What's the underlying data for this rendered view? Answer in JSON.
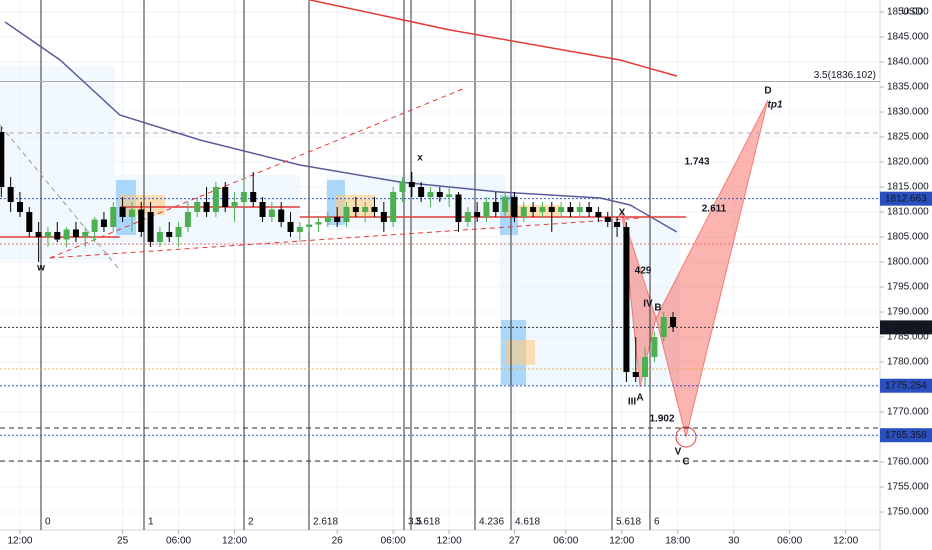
{
  "chart_data": {
    "type": "candlestick",
    "currency": "USD",
    "ylim": [
      1746.4,
      1852.4
    ],
    "yticks": [
      {
        "value": 1750,
        "label": "1750.000"
      },
      {
        "value": 1755,
        "label": "1755.000"
      },
      {
        "value": 1760,
        "label": "1760.000"
      },
      {
        "value": 1765,
        "label": "1765.000"
      },
      {
        "value": 1770,
        "label": "1770.000"
      },
      {
        "value": 1775,
        "label": "1775.000"
      },
      {
        "value": 1780,
        "label": "1780.000"
      },
      {
        "value": 1785,
        "label": "1785.000"
      },
      {
        "value": 1790,
        "label": "1790.000"
      },
      {
        "value": 1795,
        "label": "1795.000"
      },
      {
        "value": 1800,
        "label": "1800.000"
      },
      {
        "value": 1805,
        "label": "1805.000"
      },
      {
        "value": 1810,
        "label": "1810.000"
      },
      {
        "value": 1815,
        "label": "1815.000"
      },
      {
        "value": 1820,
        "label": "1820.000"
      },
      {
        "value": 1825,
        "label": "1825.000"
      },
      {
        "value": 1830,
        "label": "1830.000"
      },
      {
        "value": 1835,
        "label": "1835.000"
      },
      {
        "value": 1840,
        "label": "1840.000"
      },
      {
        "value": 1845,
        "label": "1845.000"
      },
      {
        "value": 1850,
        "label": "1850.000"
      }
    ],
    "xlim": [
      -2.14,
      92.18
    ],
    "xticks": [
      {
        "value": 0,
        "label": "12:00"
      },
      {
        "value": 11,
        "label": "25"
      },
      {
        "value": 17,
        "label": "06:00"
      },
      {
        "value": 23,
        "label": "12:00"
      },
      {
        "value": 34,
        "label": "26"
      },
      {
        "value": 40,
        "label": "06:00"
      },
      {
        "value": 46,
        "label": "12:00"
      },
      {
        "value": 53,
        "label": "27"
      },
      {
        "value": 58.5,
        "label": "06:00"
      },
      {
        "value": 64.5,
        "label": "12:00"
      },
      {
        "value": 70.5,
        "label": "18:00"
      },
      {
        "value": 76.5,
        "label": "30"
      },
      {
        "value": 82.5,
        "label": "06:00"
      },
      {
        "value": 88.5,
        "label": "12:00"
      }
    ],
    "grid": true,
    "up_color": "#4caf50",
    "down_color": "#000000",
    "x": [
      -2,
      -1,
      0,
      1,
      2,
      3,
      4,
      5,
      6,
      7,
      8,
      9,
      10,
      11,
      12,
      13,
      14,
      15,
      16,
      17,
      18,
      19,
      20,
      21,
      22,
      23,
      24,
      25,
      26,
      27,
      28,
      29,
      30,
      31,
      32,
      33,
      34,
      35,
      36,
      37,
      38,
      39,
      40,
      41,
      42,
      43,
      44,
      45,
      46,
      47,
      48,
      49,
      50,
      51,
      52,
      53,
      54,
      55,
      56,
      57,
      58,
      59,
      60,
      61,
      62,
      63,
      64,
      65,
      66,
      67,
      68,
      69,
      70
    ],
    "open": [
      1826,
      1815,
      1812,
      1810,
      1806,
      1805,
      1806,
      1804.5,
      1806.5,
      1805,
      1806,
      1808.5,
      1807,
      1811,
      1809,
      1810.5,
      1810,
      1804,
      1806,
      1805,
      1807,
      1810,
      1812,
      1810,
      1815,
      1811,
      1812,
      1814,
      1812,
      1809,
      1810.5,
      1808,
      1806,
      1807,
      1807.5,
      1808,
      1809,
      1808,
      1811,
      1810,
      1811,
      1810,
      1808,
      1814,
      1816,
      1815,
      1813,
      1814,
      1813,
      1813.5,
      1808,
      1810,
      1809,
      1812,
      1810,
      1813,
      1809,
      1811,
      1810,
      1811,
      1810,
      1811,
      1810,
      1811,
      1810,
      1809,
      1808,
      1807,
      1778,
      1777,
      1781,
      1785,
      1789
    ],
    "high": [
      1827,
      1817,
      1814,
      1811,
      1808,
      1807,
      1808,
      1807,
      1808,
      1807,
      1809,
      1810,
      1812,
      1813,
      1812,
      1812,
      1812,
      1807,
      1808,
      1808,
      1812,
      1813,
      1815,
      1816,
      1816,
      1814,
      1817,
      1818,
      1813,
      1812,
      1812,
      1810,
      1808,
      1809,
      1809,
      1810,
      1811,
      1812,
      1813,
      1812,
      1813,
      1812,
      1815,
      1817,
      1818,
      1816,
      1815,
      1815,
      1815,
      1814,
      1811,
      1812,
      1813,
      1814,
      1814,
      1814,
      1812,
      1812,
      1812,
      1812,
      1812,
      1812,
      1812,
      1812,
      1811,
      1810,
      1809,
      1808,
      1785,
      1783,
      1786,
      1790,
      1790
    ],
    "low": [
      1813,
      1810,
      1809,
      1805,
      1800,
      1803,
      1804,
      1803,
      1804,
      1803,
      1804,
      1806,
      1806,
      1808,
      1806,
      1805,
      1803,
      1803,
      1804,
      1803,
      1806,
      1809,
      1809,
      1809,
      1810,
      1808,
      1811,
      1811,
      1808,
      1808,
      1807,
      1805,
      1804,
      1806,
      1806,
      1807,
      1807,
      1807,
      1809,
      1808,
      1809,
      1806,
      1807,
      1812,
      1813,
      1812,
      1811,
      1812,
      1811,
      1806,
      1807,
      1808,
      1808,
      1809,
      1809,
      1808,
      1808,
      1809,
      1809,
      1806,
      1809,
      1809,
      1809,
      1809,
      1808,
      1807,
      1805,
      1776,
      1776,
      1775,
      1780,
      1784,
      1786
    ],
    "close": [
      1815,
      1812,
      1810,
      1806,
      1805,
      1806,
      1804.5,
      1806.5,
      1805,
      1806,
      1808.5,
      1807,
      1811,
      1809,
      1810.5,
      1806,
      1804,
      1806,
      1805,
      1807,
      1810,
      1812,
      1810,
      1815,
      1811,
      1812,
      1814,
      1812,
      1809,
      1810.5,
      1808,
      1806,
      1807,
      1807.5,
      1808,
      1809,
      1808,
      1811,
      1810,
      1811,
      1810,
      1808,
      1814,
      1816,
      1815,
      1813,
      1814,
      1813,
      1813.5,
      1808,
      1810,
      1809,
      1812,
      1810,
      1813,
      1809,
      1811,
      1810,
      1811,
      1810,
      1811,
      1810,
      1811,
      1810,
      1809,
      1808,
      1807,
      1778,
      1777,
      1781,
      1785,
      1789,
      1787
    ],
    "overlays": [
      {
        "color": "#5b5b9b",
        "style": "solid",
        "x": [
          -1.6,
          4.3,
          10.7,
          19.3,
          30,
          40.7,
          51.4,
          62.2,
          65.4,
          70.4
        ],
        "values": [
          1848,
          1840.4,
          1829.4,
          1824.4,
          1819.4,
          1816,
          1814,
          1812.8,
          1811.4,
          1806
        ]
      },
      {
        "color": "#e53935",
        "style": "solid",
        "x": [
          31.1,
          46.1,
          64.3,
          70.4
        ],
        "values": [
          1852.4,
          1846.4,
          1840.4,
          1837.2
        ]
      },
      {
        "color": "#e53935",
        "style": "solid",
        "x": [
          -2.14,
          10.7
        ],
        "values": [
          1805,
          1805
        ]
      },
      {
        "color": "#e53935",
        "style": "solid",
        "x": [
          10.7,
          30
        ],
        "values": [
          1811,
          1811
        ]
      },
      {
        "color": "#e53935",
        "style": "solid",
        "x": [
          30,
          71.4
        ],
        "values": [
          1809,
          1809
        ]
      },
      {
        "color": "#e53935",
        "style": "dashed",
        "x": [
          3.2,
          47.7
        ],
        "values": [
          1800.8,
          1834.8
        ]
      },
      {
        "color": "#e53935",
        "style": "dashed",
        "x": [
          3.2,
          66.5
        ],
        "values": [
          1800.8,
          1808.8
        ]
      },
      {
        "color": "#999999",
        "style": "dashed",
        "x": [
          -2.14,
          10.7
        ],
        "values": [
          1827.4,
          1798.4
        ]
      }
    ],
    "levels": [
      {
        "value": 1836.102,
        "label": "3.5(1836.102)",
        "color": "#aaaaaa",
        "style": "solid"
      },
      {
        "value": 1825.8,
        "color": "#aaaaaa",
        "style": "dashed"
      },
      {
        "value": 1812.663,
        "label": "1812.663",
        "color": "#3355cc",
        "style": "dotted",
        "tag_color": "#2a4fbf"
      },
      {
        "value": 1803.6,
        "color": "#e57373",
        "style": "dotted"
      },
      {
        "value": 1786.92,
        "label": "1786.920",
        "color": "#333333",
        "style": "dotted",
        "tag_color": "#131722"
      },
      {
        "value": 1778.6,
        "color": "#e0b050",
        "style": "dotted"
      },
      {
        "value": 1775.254,
        "label": "1775.254",
        "color": "#3355cc",
        "style": "dotted",
        "tag_color": "#2a4fbf"
      },
      {
        "value": 1766.8,
        "color": "#333333",
        "style": "dashed"
      },
      {
        "value": 1765.358,
        "label": "1765.358",
        "color": "#3355cc",
        "style": "dotted",
        "tag_color": "#2a4fbf"
      },
      {
        "value": 1760.2,
        "color": "#333333",
        "style": "dashed"
      }
    ],
    "time_fibs": [
      "0",
      "1",
      "2",
      "2.618",
      "3.5",
      "3.618",
      "4.236",
      "4.618",
      "5.618",
      "6"
    ],
    "annotations": [
      "x",
      "w",
      "X",
      "A",
      "B",
      "C",
      "D",
      "tp1",
      "1.743",
      "2.611",
      "1.902",
      "429",
      "IV",
      "III",
      "V"
    ]
  }
}
